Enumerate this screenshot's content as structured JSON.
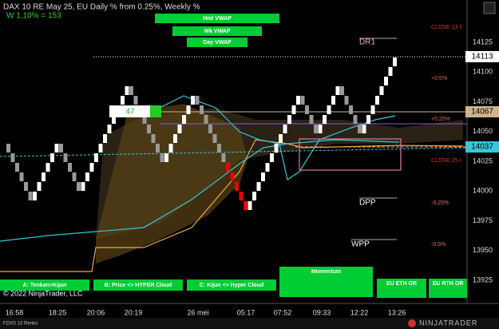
{
  "header": {
    "title": "DAX 10  RE May 25, EU Daily % from 0.25%, Weekly %",
    "subtitle": "W 1,10% = 153"
  },
  "vwap_buttons": [
    "Hml VWAP",
    "Wk VWAP",
    "Day VWAP"
  ],
  "price_axis": {
    "ticks": [
      "14125",
      "14100",
      "14075",
      "14050",
      "14025",
      "14000",
      "13975",
      "13950",
      "13925"
    ],
    "markers": [
      "14113",
      "14067",
      "14037"
    ]
  },
  "time_axis": [
    "16:58",
    "18:25",
    "20:06",
    "20:19",
    "26 mei",
    "05:17",
    "07:52",
    "09:33",
    "12:22",
    "13:26"
  ],
  "levels": [
    "CLOSE 23 I",
    "DR1",
    "+0.5%",
    "+0.25%",
    "CLOSE 25 I",
    "DPP",
    "-0.25%",
    "WPP",
    "-0.5%"
  ],
  "input_box": "47",
  "bottom_buttons": [
    "A: Tenkan>Kijun",
    "B: Price <> HYPER Cloud",
    "C: Kijun <> Hyper Cloud",
    "Momentum",
    "EU ETH OR",
    "EU RTH OR"
  ],
  "copyright": "© 2022 NinjaTrader, LLC",
  "footer": {
    "instrument": "FDXS 10 Renko",
    "brand": "NINJATRADER"
  }
}
